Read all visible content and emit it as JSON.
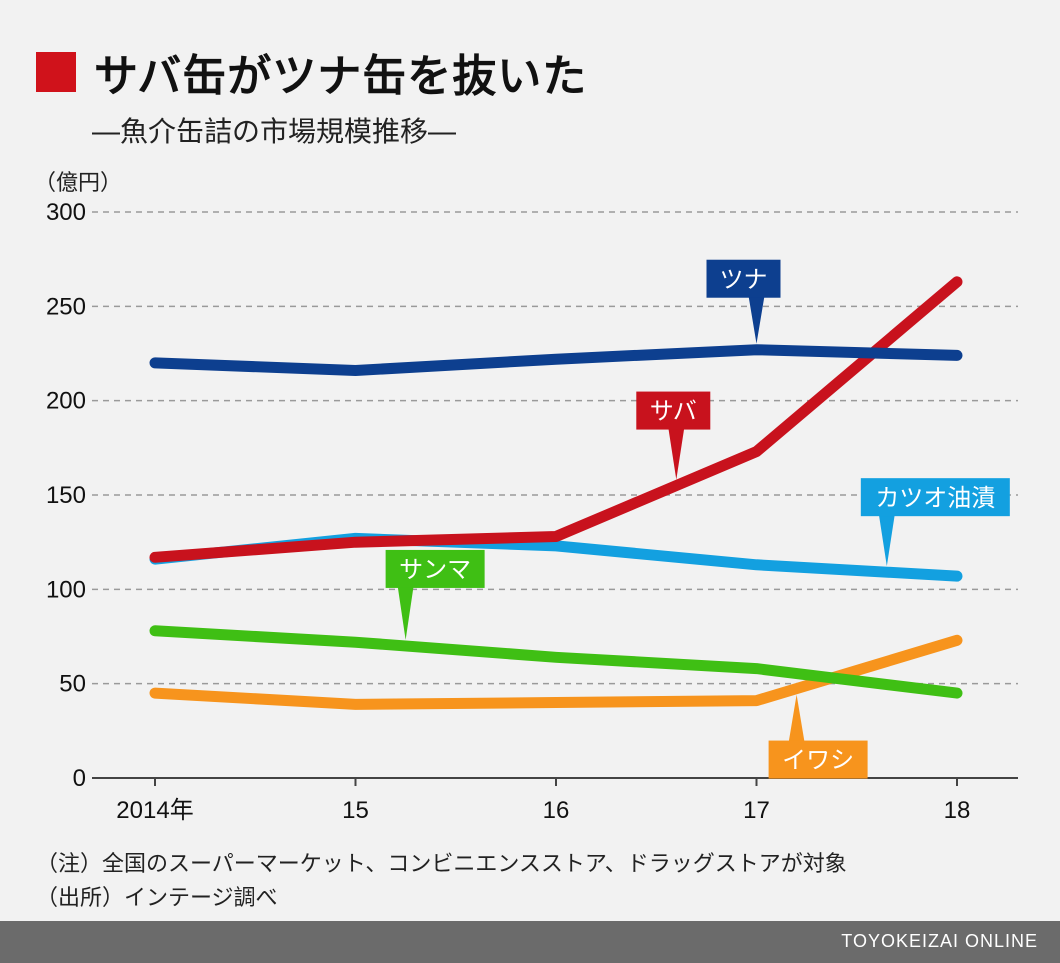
{
  "header": {
    "title": "サバ缶がツナ缶を抜いた",
    "subtitle": "―魚介缶詰の市場規模推移―",
    "accent_color": "#d0121b"
  },
  "chart_data": {
    "type": "line",
    "x": [
      "2014年",
      "15",
      "16",
      "17",
      "18"
    ],
    "ylabel": "（億円）",
    "ylim": [
      0,
      300
    ],
    "yticks": [
      0,
      50,
      100,
      150,
      200,
      250,
      300
    ],
    "grid": true,
    "series": [
      {
        "name": "ツナ",
        "color": "#0d3f8f",
        "values": [
          220,
          216,
          222,
          227,
          224
        ],
        "label_at": 3
      },
      {
        "name": "サバ",
        "color": "#c8121d",
        "values": [
          117,
          125,
          128,
          173,
          263
        ],
        "label_at": 2.6
      },
      {
        "name": "カツオ油漬",
        "color": "#13a0e0",
        "values": [
          116,
          127,
          123,
          113,
          107
        ],
        "label_at": 3.65
      },
      {
        "name": "サンマ",
        "color": "#3fbf14",
        "values": [
          78,
          72,
          64,
          58,
          45
        ],
        "label_at": 1.25
      },
      {
        "name": "イワシ",
        "color": "#f7941d",
        "values": [
          45,
          39,
          40,
          41,
          73
        ],
        "label_at": 3.2
      }
    ]
  },
  "notes": {
    "note": "（注）全国のスーパーマーケット、コンビニエンスストア、ドラッグストアが対象",
    "source": "（出所）インテージ調べ"
  },
  "footer": {
    "brand": "TOYOKEIZAI ONLINE"
  }
}
